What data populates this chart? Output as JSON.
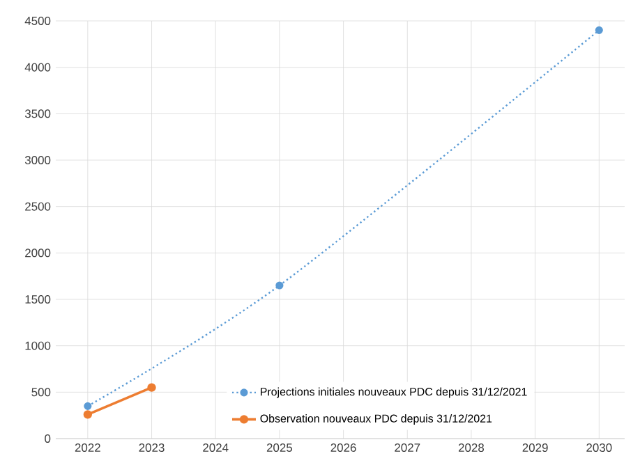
{
  "chart_data": {
    "type": "line",
    "series": [
      {
        "name": "Projections initiales nouveaux PDC depuis 31/12/2021",
        "color": "#5b9bd5",
        "line_style": "dotted",
        "marker": "circle",
        "x": [
          2022,
          2025,
          2030
        ],
        "values": [
          350,
          1650,
          4400
        ]
      },
      {
        "name": "Observation nouveaux PDC depuis 31/12/2021",
        "color": "#ed7d31",
        "line_style": "solid",
        "marker": "circle",
        "x": [
          2022,
          2023
        ],
        "values": [
          260,
          550
        ]
      }
    ],
    "xlim": [
      2021.5,
      2030.4
    ],
    "ylim": [
      0,
      4500
    ],
    "xticks": [
      2022,
      2023,
      2024,
      2025,
      2026,
      2027,
      2028,
      2029,
      2030
    ],
    "yticks": [
      0,
      500,
      1000,
      1500,
      2000,
      2500,
      3000,
      3500,
      4000,
      4500
    ],
    "grid": true,
    "legend": "bottom right"
  }
}
